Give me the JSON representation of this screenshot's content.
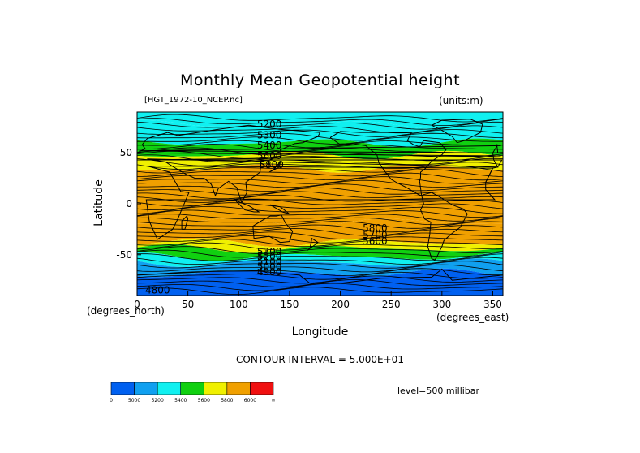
{
  "chart_data": {
    "type": "heatmap",
    "title": "Monthly Mean Geopotential height",
    "file_label": "[HGT_1972-10_NCEP.nc]",
    "units_label": "(units:m)",
    "xlabel": "Longitude",
    "ylabel": "Latitude",
    "x_unit_note": "(degrees_east)",
    "y_unit_note": "(degrees_north)",
    "xlim": [
      0,
      360
    ],
    "ylim": [
      -90,
      90
    ],
    "x_ticks": [
      0,
      50,
      100,
      150,
      200,
      250,
      300,
      350
    ],
    "y_ticks": [
      50,
      0,
      -50
    ],
    "contour_interval_text": "CONTOUR INTERVAL = 5.000E+01",
    "level_text": "level=500 millibar",
    "colorbar": {
      "colors": [
        "#0060f0",
        "#10a0f0",
        "#10f0f0",
        "#10d010",
        "#f0f000",
        "#f0a000",
        "#f01010"
      ],
      "labels": [
        "0",
        "5000",
        "5200",
        "5400",
        "5600",
        "5800",
        "6000",
        "∞"
      ]
    },
    "zonal_bands": [
      {
        "lat_from": 90,
        "lat_to": 78,
        "value_range": "5200-5400"
      },
      {
        "lat_from": 78,
        "lat_to": 60,
        "value_range": "5200-5400"
      },
      {
        "lat_from": 60,
        "lat_to": 48,
        "value_range": "5400-5600"
      },
      {
        "lat_from": 48,
        "lat_to": 35,
        "value_range": "5600-5800"
      },
      {
        "lat_from": 35,
        "lat_to": -18,
        "value_range": "5800-6000"
      },
      {
        "lat_from": -18,
        "lat_to": -38,
        "value_range": "5800-6000"
      },
      {
        "lat_from": -38,
        "lat_to": -44,
        "value_range": "5600-5800"
      },
      {
        "lat_from": -44,
        "lat_to": -52,
        "value_range": "5400-5600"
      },
      {
        "lat_from": -52,
        "lat_to": -58,
        "value_range": "5200-5400"
      },
      {
        "lat_from": -58,
        "lat_to": -68,
        "value_range": "5000-5200"
      },
      {
        "lat_from": -68,
        "lat_to": -90,
        "value_range": "0-5000"
      }
    ],
    "contour_labels": [
      {
        "text": "5200",
        "lon": 118,
        "lat": 75
      },
      {
        "text": "5300",
        "lon": 118,
        "lat": 64
      },
      {
        "text": "5400",
        "lon": 118,
        "lat": 54
      },
      {
        "text": "5600",
        "lon": 118,
        "lat": 44
      },
      {
        "text": "5800",
        "lon": 120,
        "lat": 35
      },
      {
        "text": "5800",
        "lon": 222,
        "lat": -27
      },
      {
        "text": "5700",
        "lon": 222,
        "lat": -34
      },
      {
        "text": "5600",
        "lon": 222,
        "lat": -40
      },
      {
        "text": "5300",
        "lon": 118,
        "lat": -50
      },
      {
        "text": "5200",
        "lon": 118,
        "lat": -55
      },
      {
        "text": "5100",
        "lon": 118,
        "lat": -60
      },
      {
        "text": "5000",
        "lon": 118,
        "lat": -65
      },
      {
        "text": "4900",
        "lon": 118,
        "lat": -70
      },
      {
        "text": "4800",
        "lon": 8,
        "lat": -88
      }
    ]
  }
}
